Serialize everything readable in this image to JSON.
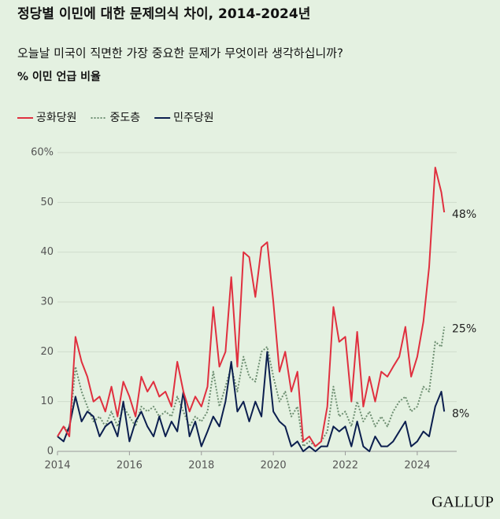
{
  "chart_data": {
    "type": "line",
    "title": "정당별 이민에 대한 문제의식 차이, 2014-2024년",
    "subtitle": "오늘날 미국이 직면한 가장 중요한 문제가 무엇이라 생각하십니까?",
    "ylabel": "% 이민 언급 비율",
    "source": "GALLUP",
    "x": [
      2014,
      2014.17,
      2014.33,
      2014.5,
      2014.67,
      2014.83,
      2015,
      2015.17,
      2015.33,
      2015.5,
      2015.67,
      2015.83,
      2016,
      2016.17,
      2016.33,
      2016.5,
      2016.67,
      2016.83,
      2017,
      2017.17,
      2017.33,
      2017.5,
      2017.67,
      2017.83,
      2018,
      2018.17,
      2018.33,
      2018.5,
      2018.67,
      2018.83,
      2019,
      2019.17,
      2019.33,
      2019.5,
      2019.67,
      2019.83,
      2020,
      2020.17,
      2020.33,
      2020.5,
      2020.67,
      2020.83,
      2021,
      2021.17,
      2021.33,
      2021.5,
      2021.67,
      2021.83,
      2022,
      2022.17,
      2022.33,
      2022.5,
      2022.67,
      2022.83,
      2023,
      2023.17,
      2023.33,
      2023.5,
      2023.67,
      2023.83,
      2024,
      2024.17,
      2024.33,
      2024.5,
      2024.67,
      2024.75
    ],
    "series": [
      {
        "name": "공화당원",
        "color": "#e0303f",
        "dash": "solid",
        "values": [
          3,
          5,
          3,
          23,
          18,
          15,
          10,
          11,
          8,
          13,
          7,
          14,
          11,
          7,
          15,
          12,
          14,
          11,
          12,
          9,
          18,
          12,
          8,
          11,
          9,
          13,
          29,
          17,
          20,
          35,
          17,
          40,
          39,
          31,
          41,
          42,
          30,
          16,
          20,
          12,
          16,
          2,
          3,
          1,
          2,
          9,
          29,
          22,
          23,
          10,
          24,
          9,
          15,
          10,
          16,
          15,
          17,
          19,
          25,
          15,
          19,
          26,
          37,
          57,
          52,
          48
        ],
        "value_labels": [
          null,
          null,
          null,
          null,
          null,
          null,
          null,
          null,
          null,
          null,
          null,
          null,
          null,
          null,
          null,
          null,
          null,
          null,
          null,
          null,
          null,
          null,
          null,
          null,
          null,
          null,
          null,
          null,
          null,
          null,
          null,
          null,
          null,
          null,
          null,
          null,
          null,
          null,
          null,
          null,
          null,
          null,
          null,
          null,
          null,
          null,
          null,
          null,
          null,
          null,
          null,
          null,
          null,
          null,
          null,
          null,
          null,
          null,
          null,
          null,
          null,
          null,
          null,
          null,
          null,
          "48%"
        ]
      },
      {
        "name": "중도층",
        "color": "#6e8f72",
        "dash": "dotted",
        "values": [
          3,
          5,
          4,
          17,
          12,
          9,
          6,
          7,
          5,
          8,
          5,
          9,
          7,
          5,
          9,
          8,
          9,
          7,
          8,
          7,
          11,
          8,
          5,
          7,
          6,
          8,
          16,
          9,
          13,
          17,
          12,
          19,
          15,
          14,
          20,
          21,
          15,
          10,
          12,
          7,
          9,
          1,
          2,
          1,
          2,
          4,
          13,
          7,
          8,
          5,
          10,
          6,
          8,
          5,
          7,
          5,
          8,
          10,
          11,
          8,
          9,
          13,
          12,
          22,
          21,
          25
        ],
        "value_labels": [
          null,
          null,
          null,
          null,
          null,
          null,
          null,
          null,
          null,
          null,
          null,
          null,
          null,
          null,
          null,
          null,
          null,
          null,
          null,
          null,
          null,
          null,
          null,
          null,
          null,
          null,
          null,
          null,
          null,
          null,
          null,
          null,
          null,
          null,
          null,
          null,
          null,
          null,
          null,
          null,
          null,
          null,
          null,
          null,
          null,
          null,
          null,
          null,
          null,
          null,
          null,
          null,
          null,
          null,
          null,
          null,
          null,
          null,
          null,
          null,
          null,
          null,
          null,
          null,
          null,
          "25%"
        ]
      },
      {
        "name": "민주당원",
        "color": "#0c1f4f",
        "dash": "solid",
        "values": [
          3,
          2,
          5,
          11,
          6,
          8,
          7,
          3,
          5,
          6,
          3,
          10,
          2,
          6,
          8,
          5,
          3,
          7,
          3,
          6,
          4,
          12,
          3,
          6,
          1,
          4,
          7,
          5,
          10,
          18,
          8,
          10,
          6,
          10,
          7,
          20,
          8,
          6,
          5,
          1,
          2,
          0,
          1,
          0,
          1,
          1,
          5,
          4,
          5,
          1,
          6,
          1,
          0,
          3,
          1,
          1,
          2,
          4,
          6,
          1,
          2,
          4,
          3,
          9,
          12,
          8
        ],
        "value_labels": [
          null,
          null,
          null,
          null,
          null,
          null,
          null,
          null,
          null,
          null,
          null,
          null,
          null,
          null,
          null,
          null,
          null,
          null,
          null,
          null,
          null,
          null,
          null,
          null,
          null,
          null,
          null,
          null,
          null,
          null,
          null,
          null,
          null,
          null,
          null,
          null,
          null,
          null,
          null,
          null,
          null,
          null,
          null,
          null,
          null,
          null,
          null,
          null,
          null,
          null,
          null,
          null,
          null,
          null,
          null,
          null,
          null,
          null,
          null,
          null,
          null,
          null,
          null,
          null,
          null,
          "8%"
        ]
      }
    ],
    "xlim": [
      2014,
      2025
    ],
    "xticks": [
      2014,
      2016,
      2018,
      2020,
      2022,
      2024
    ],
    "ylim": [
      0,
      60
    ],
    "yticks": [
      0,
      10,
      20,
      30,
      40,
      50,
      {
        "value": 60,
        "label": "60%"
      }
    ],
    "grid": true,
    "legend": "top-left"
  }
}
